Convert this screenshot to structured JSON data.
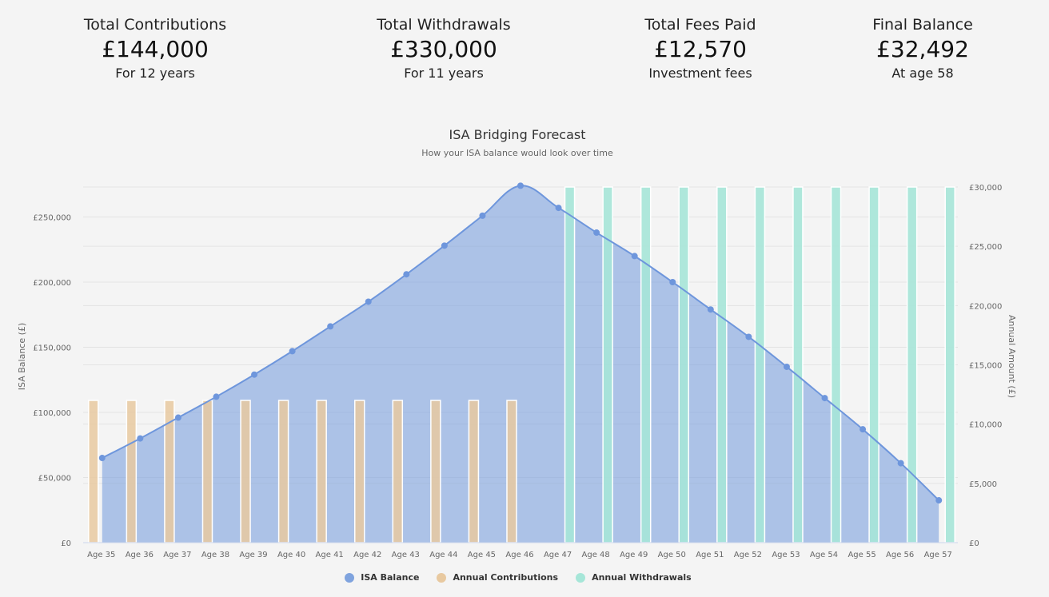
{
  "stats": [
    {
      "label": "Total Contributions",
      "value": "£144,000",
      "sub": "For 12 years"
    },
    {
      "label": "Total Withdrawals",
      "value": "£330,000",
      "sub": "For 11 years"
    },
    {
      "label": "Total Fees Paid",
      "value": "£12,570",
      "sub": "Investment fees"
    },
    {
      "label": "Final Balance",
      "value": "£32,492",
      "sub": "At age 58"
    }
  ],
  "chart_data": {
    "type": "bar",
    "title": "ISA Bridging Forecast",
    "subtitle": "How your ISA balance would look over time",
    "categories": [
      "Age 35",
      "Age 36",
      "Age 37",
      "Age 38",
      "Age 39",
      "Age 40",
      "Age 41",
      "Age 42",
      "Age 43",
      "Age 44",
      "Age 45",
      "Age 46",
      "Age 47",
      "Age 48",
      "Age 49",
      "Age 50",
      "Age 51",
      "Age 52",
      "Age 53",
      "Age 54",
      "Age 55",
      "Age 56",
      "Age 57"
    ],
    "ylabel": "ISA Balance (£)",
    "y2label": "Annual Amount (£)",
    "ylim": [
      0,
      273000
    ],
    "y2lim": [
      0,
      30000
    ],
    "yticks": [
      0,
      50000,
      100000,
      150000,
      200000,
      250000
    ],
    "yticklabels": [
      "£0",
      "£50,000",
      "£100,000",
      "£150,000",
      "£200,000",
      "£250,000"
    ],
    "y2ticks": [
      0,
      5000,
      10000,
      15000,
      20000,
      25000,
      30000
    ],
    "y2ticklabels": [
      "£0",
      "£5,000",
      "£10,000",
      "£15,000",
      "£20,000",
      "£25,000",
      "£30,000"
    ],
    "grid": true,
    "legend_position": "bottom-center",
    "series": [
      {
        "name": "ISA Balance",
        "type": "area",
        "axis": "left",
        "color": "#7fa3de",
        "values": [
          65000,
          80000,
          96000,
          112000,
          129000,
          147000,
          166000,
          185000,
          206000,
          228000,
          251000,
          274000,
          257000,
          238000,
          220000,
          200000,
          179000,
          158000,
          135000,
          111000,
          87000,
          61000,
          32492
        ]
      },
      {
        "name": "Annual Contributions",
        "type": "bar",
        "axis": "right",
        "color": "#e8c9a0",
        "values": [
          12000,
          12000,
          12000,
          12000,
          12000,
          12000,
          12000,
          12000,
          12000,
          12000,
          12000,
          12000,
          0,
          0,
          0,
          0,
          0,
          0,
          0,
          0,
          0,
          0,
          0
        ]
      },
      {
        "name": "Annual Withdrawals",
        "type": "bar",
        "axis": "right",
        "color": "#a6e6d8",
        "values": [
          0,
          0,
          0,
          0,
          0,
          0,
          0,
          0,
          0,
          0,
          0,
          0,
          30000,
          30000,
          30000,
          30000,
          30000,
          30000,
          30000,
          30000,
          30000,
          30000,
          30000
        ]
      }
    ]
  }
}
